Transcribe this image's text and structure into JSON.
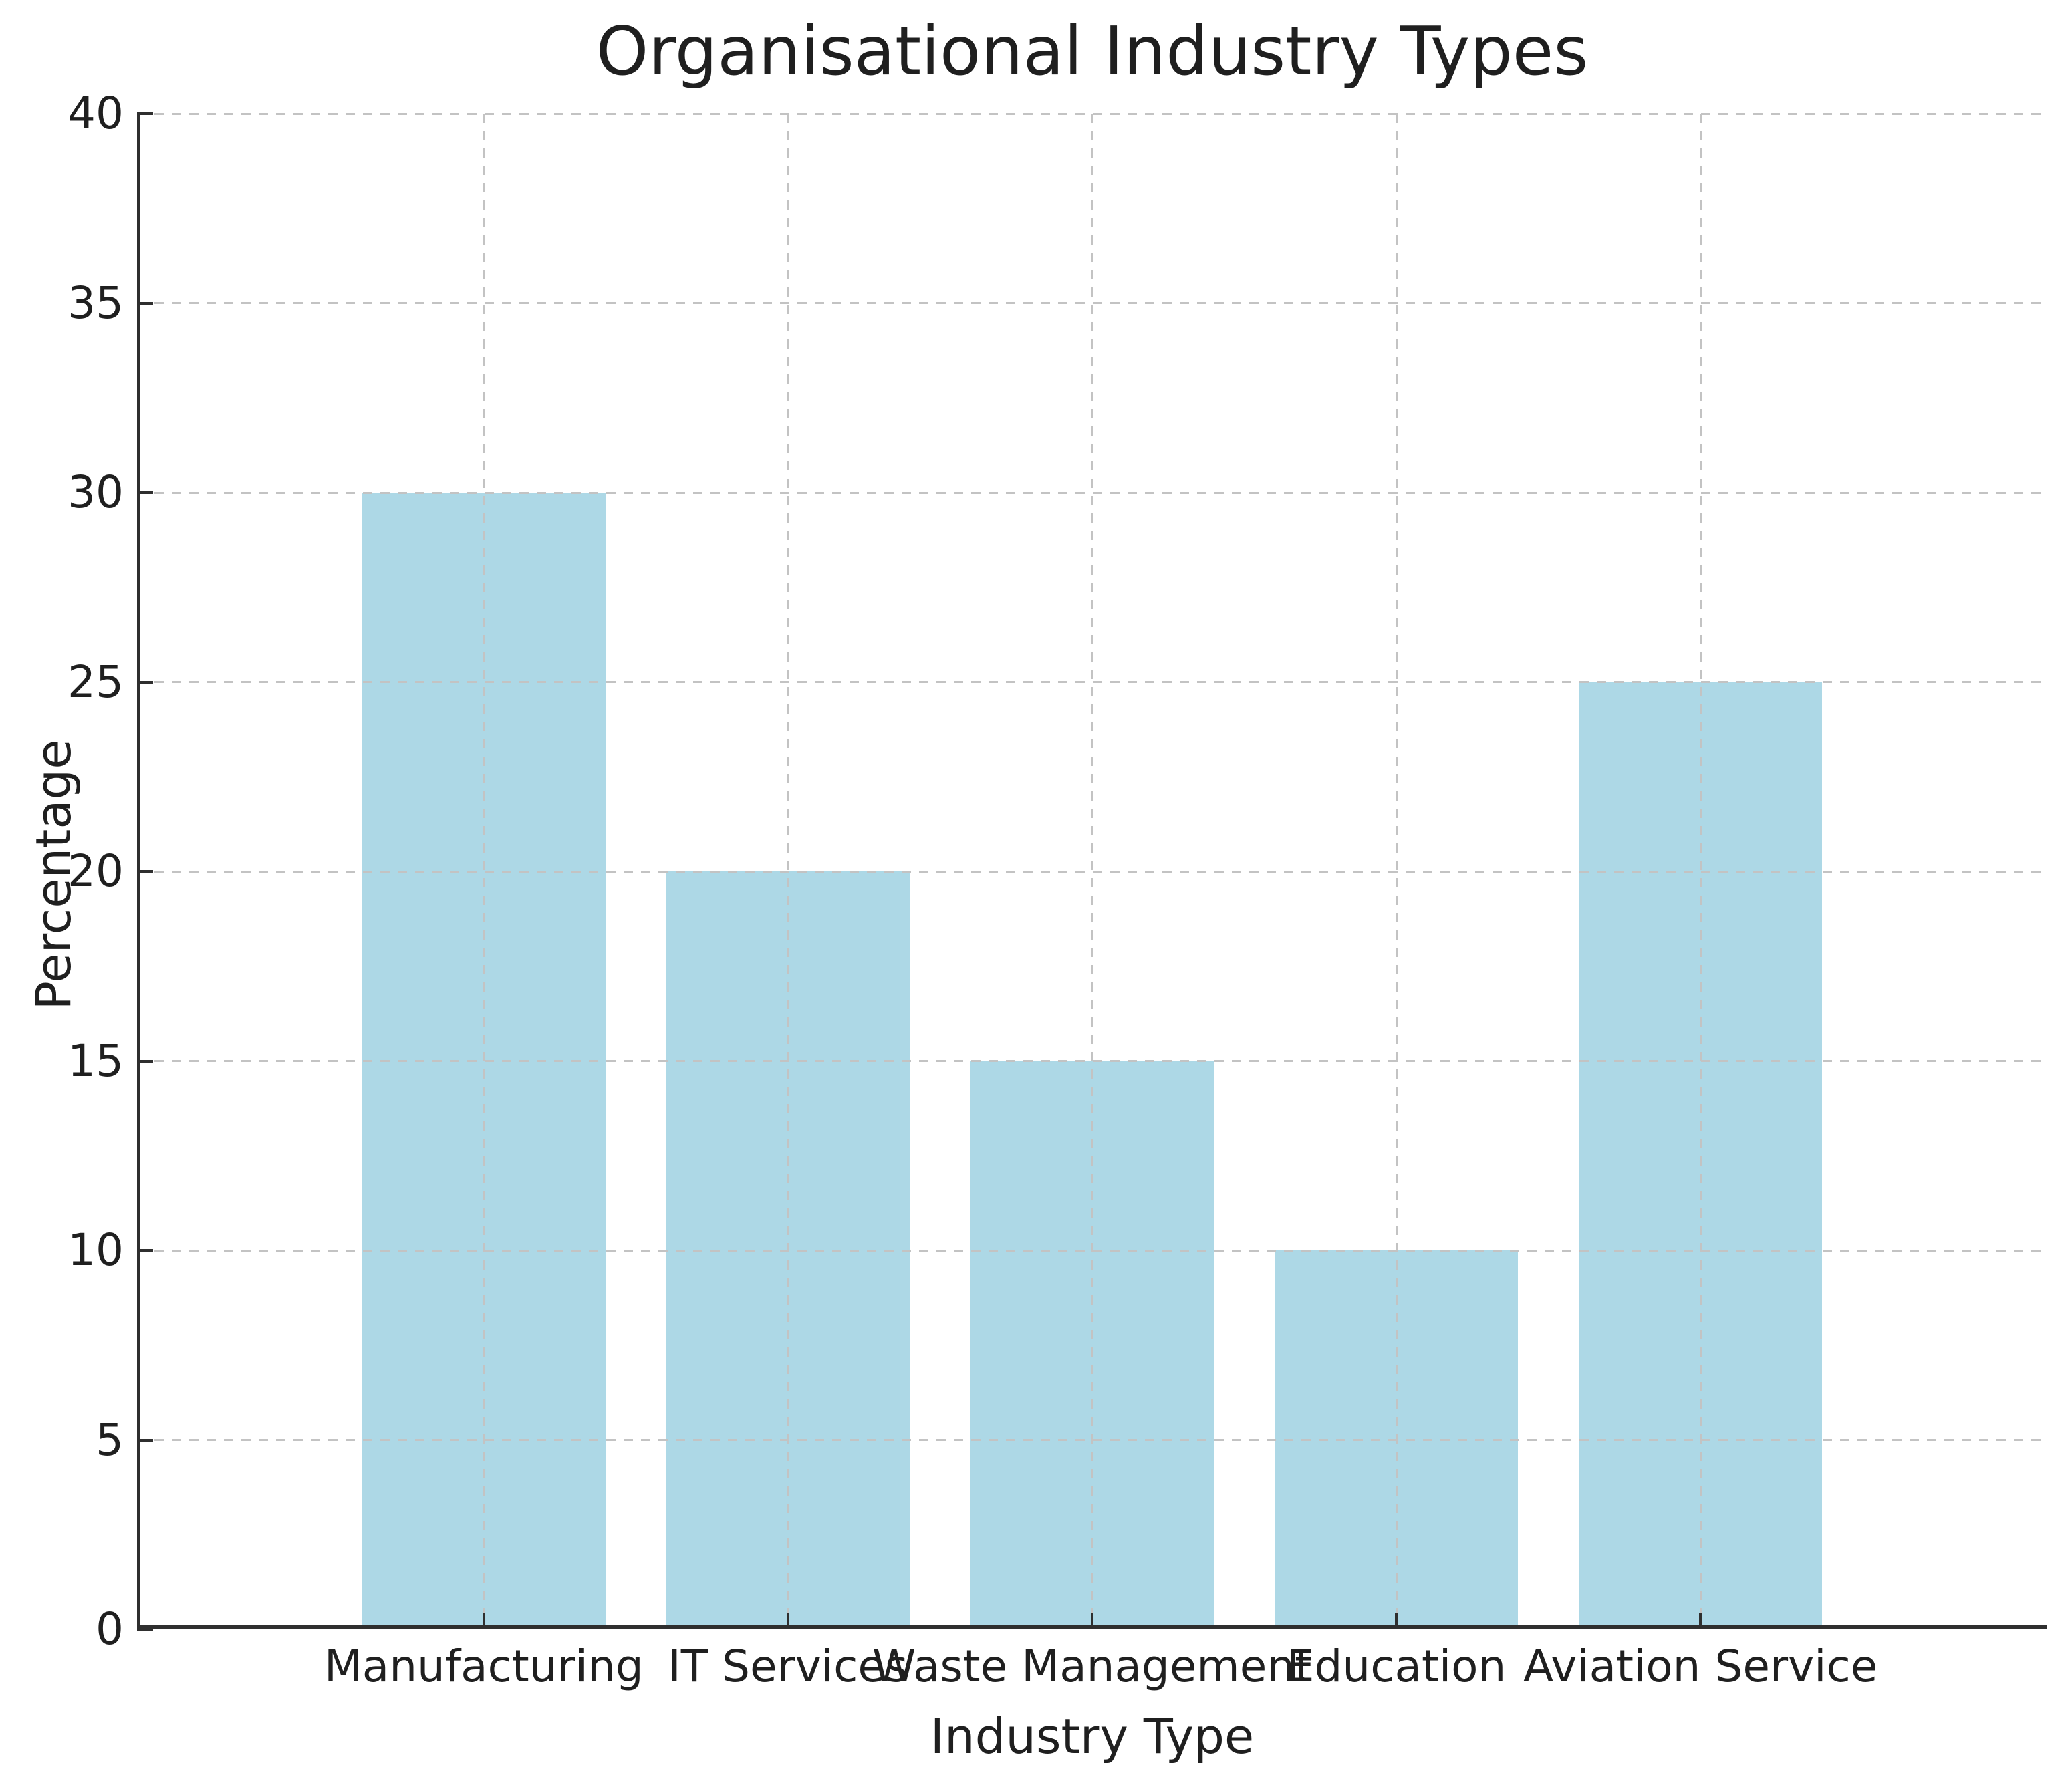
{
  "chart_data": {
    "type": "bar",
    "title": "Organisational Industry Types",
    "xlabel": "Industry Type",
    "ylabel": "Percentage",
    "categories": [
      "Manufacturing",
      "IT Services",
      "Waste Management",
      "Education",
      "Aviation Service"
    ],
    "values": [
      30,
      20,
      15,
      10,
      25
    ],
    "y_ticks": [
      0,
      5,
      10,
      15,
      20,
      25,
      30,
      35,
      40
    ],
    "ylim": [
      0,
      40
    ],
    "bar_color": "#ADD8E6",
    "grid": true,
    "grid_style": "dashed",
    "grid_color": "#c3c3c3",
    "axis_color": "#2f2f2f",
    "text_color": "#1f1f1f",
    "background": "#ffffff",
    "legend": "none"
  }
}
